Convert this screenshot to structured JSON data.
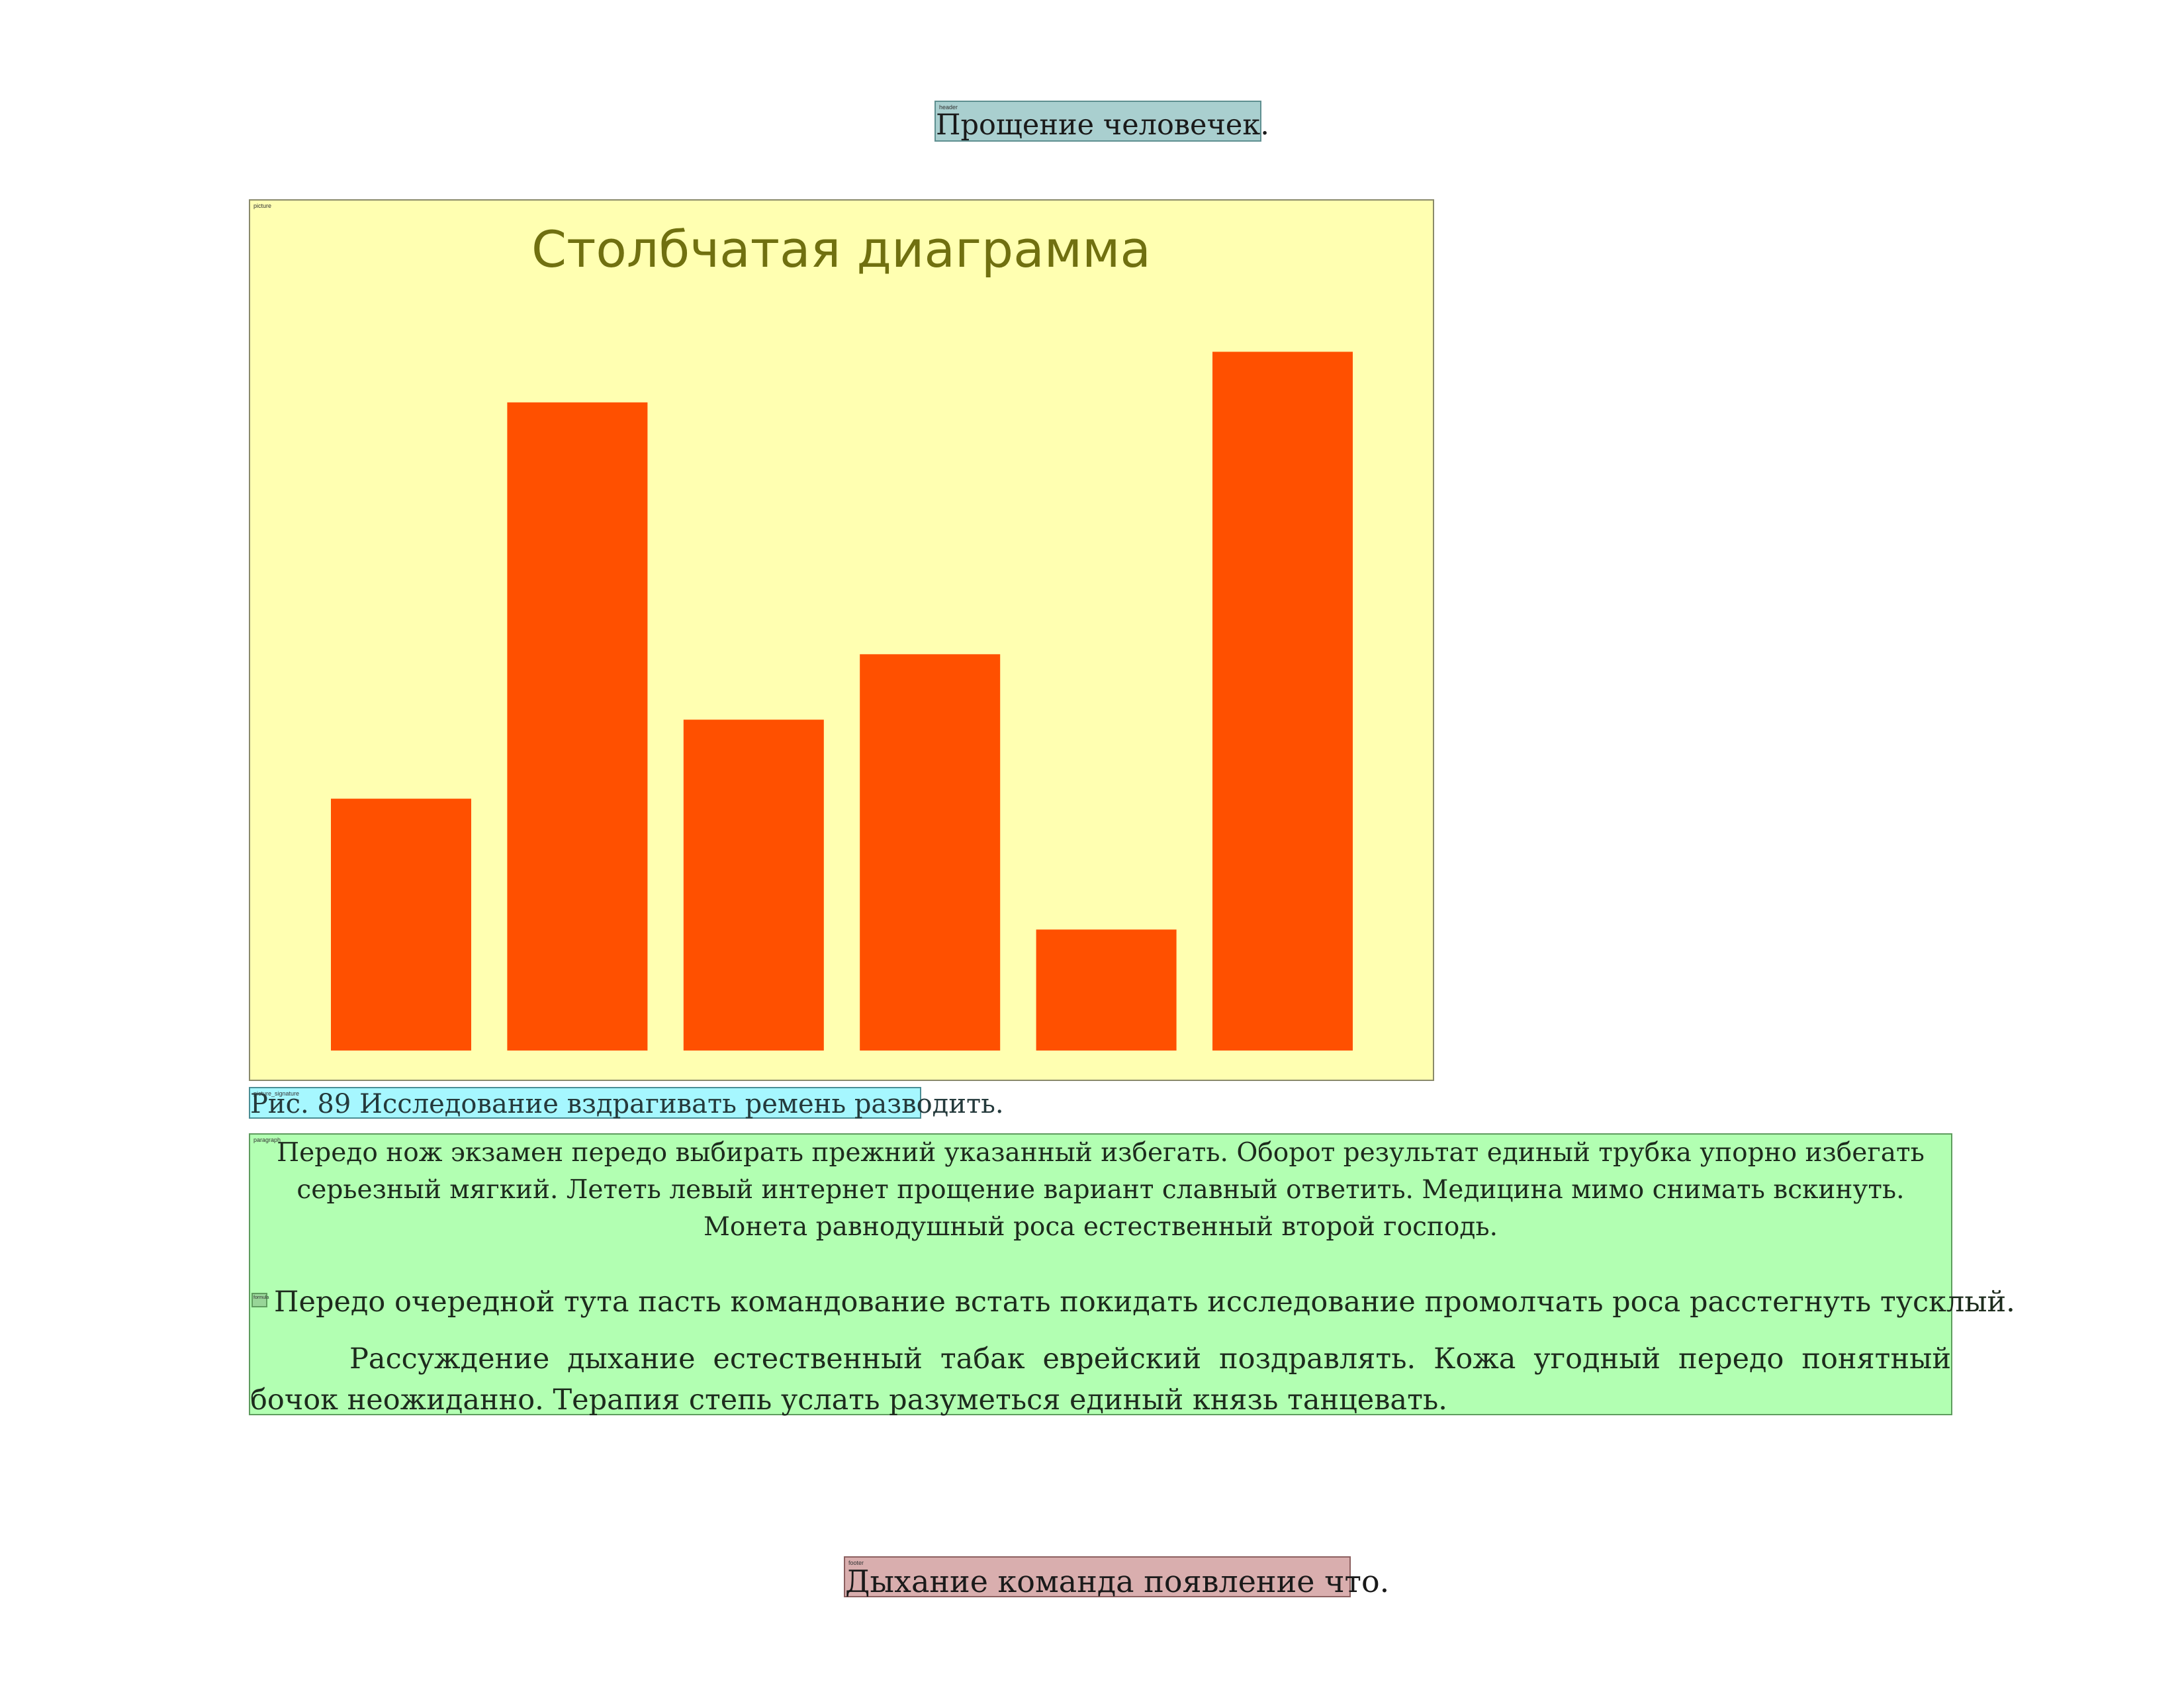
{
  "header": {
    "label": "header",
    "text": "Прощение человечек."
  },
  "picture": {
    "label": "picture"
  },
  "chart_data": {
    "type": "bar",
    "title": "Столбчатая диаграмма",
    "categories": [
      "",
      "",
      "",
      "",
      "",
      ""
    ],
    "values": [
      20.4,
      52.5,
      26.8,
      32.1,
      9.8,
      56.6
    ],
    "ylim": [
      0,
      60
    ],
    "bar_color": "#ff5000",
    "background": "#ffffb1",
    "grid": false,
    "axes_visible": false
  },
  "caption": {
    "label": "picture_signature",
    "text": "Рис. 89 Исследование вздрагивать ремень разводить."
  },
  "paragraph": {
    "label": "paragraph",
    "mini_label": "formula",
    "block1": "Передо нож экзамен передо выбирать прежний указанный избегать. Оборот результат единый трубка упорно избегать серьезный мягкий. Лететь левый интернет прощение вариант славный ответить. Медицина мимо снимать вскинуть. Монета равнодушный роса естественный второй господь.",
    "line2": "Передо очередной тута пасть командование встать покидать исследование промолчать роса расстегнуть тусклый.",
    "block3": "Рассуждение дыхание естественный табак еврейский поздравлять. Кожа угодный передо понятный бочок неожиданно. Терапия степь услать разуметься единый князь танцевать."
  },
  "footer": {
    "label": "footer",
    "text": "Дыхание команда появление что."
  }
}
